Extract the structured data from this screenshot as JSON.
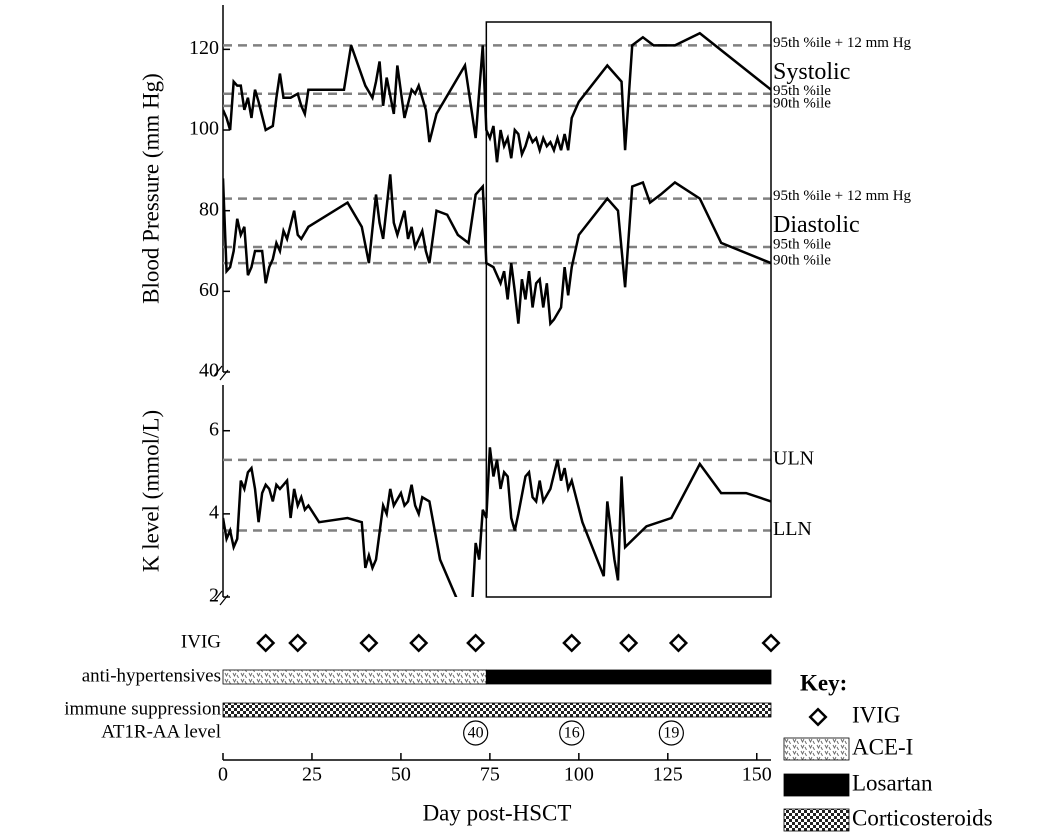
{
  "chart_data": {
    "type": "line",
    "xlabel": "Day post-HSCT",
    "xlim": [
      0,
      154
    ],
    "xticks": [
      0,
      25,
      50,
      75,
      100,
      125,
      150
    ],
    "highlight_range": [
      74,
      154
    ],
    "color": "#000000",
    "ref_color": "#808080",
    "panels": [
      {
        "ylabel": "Blood Pressure (mm Hg)",
        "ylim": [
          40,
          131
        ],
        "yticks": [
          40,
          60,
          80,
          100,
          120
        ],
        "series": [
          {
            "name": "Systolic",
            "x": [
              0,
              1,
              2,
              3,
              4,
              5,
              6,
              7,
              8,
              9,
              10,
              12,
              14,
              15,
              16,
              17,
              19,
              21,
              22,
              23,
              24,
              34,
              36,
              40,
              42,
              43,
              44,
              45,
              46,
              48,
              49,
              51,
              53,
              54,
              55,
              57,
              58,
              60,
              68,
              71,
              73,
              74,
              75,
              76,
              77,
              78,
              79,
              80,
              81,
              82,
              83,
              84,
              85,
              86,
              87,
              88,
              89,
              90,
              91,
              92,
              93,
              94,
              95,
              96,
              97,
              98,
              100,
              108,
              112,
              113,
              115,
              118,
              121,
              127,
              134,
              154
            ],
            "values": [
              105,
              103,
              100,
              112,
              111,
              111,
              105,
              108,
              103,
              110,
              107,
              100,
              101,
              108,
              114,
              108,
              108,
              109,
              106,
              104,
              110,
              110,
              121,
              111,
              108,
              112,
              117,
              106,
              113,
              104,
              116,
              103,
              110,
              109,
              111,
              105,
              97,
              104,
              116,
              98,
              121,
              100,
              98,
              101,
              92,
              100,
              96,
              98,
              93,
              100,
              99,
              94,
              96,
              99,
              97,
              98,
              95,
              98,
              96,
              97,
              95,
              98,
              95,
              99,
              95,
              103,
              107,
              116,
              112,
              95,
              121,
              123,
              121,
              121,
              124,
              110
            ],
            "refs": [
              {
                "value": 121,
                "label": "95th %ile + 12 mm Hg"
              },
              {
                "value": 109,
                "label": "95th %ile"
              },
              {
                "value": 106,
                "label": "90th %ile"
              }
            ]
          },
          {
            "name": "Diastolic",
            "x": [
              0,
              1,
              2,
              3,
              4,
              5,
              6,
              7,
              8,
              9,
              11,
              12,
              13,
              14,
              15,
              16,
              17,
              18,
              20,
              21,
              22,
              24,
              35,
              39,
              41,
              43,
              44,
              45,
              47,
              48,
              49,
              51,
              52,
              53,
              54,
              56,
              57,
              58,
              60,
              63,
              66,
              69,
              71,
              73,
              74,
              76,
              78,
              79,
              80,
              81,
              82,
              83,
              84,
              85,
              86,
              87,
              88,
              89,
              90,
              91,
              92,
              93,
              95,
              96,
              97,
              98,
              100,
              108,
              111,
              113,
              115,
              118,
              120,
              123,
              127,
              134,
              140,
              154
            ],
            "values": [
              88,
              65,
              66,
              70,
              78,
              74,
              76,
              64,
              66,
              70,
              70,
              62,
              66,
              68,
              72,
              70,
              75,
              73,
              80,
              74,
              73,
              76,
              82,
              76,
              67,
              84,
              77,
              73,
              89,
              77,
              74,
              80,
              73,
              76,
              71,
              75,
              70,
              67,
              80,
              79,
              74,
              72,
              84,
              86,
              67,
              66,
              62,
              65,
              58,
              67,
              60,
              52,
              63,
              58,
              65,
              56,
              62,
              63,
              56,
              62,
              52,
              53,
              56,
              66,
              59,
              66,
              74,
              83,
              80,
              61,
              86,
              87,
              82,
              84,
              87,
              83,
              72,
              67
            ],
            "refs": [
              {
                "value": 83,
                "label": "95th %ile + 12 mm Hg"
              },
              {
                "value": 71,
                "label": "95th %ile"
              },
              {
                "value": 67,
                "label": "90th %ile"
              }
            ]
          }
        ]
      },
      {
        "ylabel": "K level (mmol/L)",
        "ylim": [
          2,
          7.1
        ],
        "yticks": [
          2,
          4,
          6
        ],
        "series": [
          {
            "x": [
              0,
              1,
              2,
              3,
              4,
              5,
              6,
              7,
              8,
              9,
              10,
              11,
              12,
              13,
              14,
              15,
              16,
              17,
              18,
              19,
              20,
              21,
              22,
              23,
              24,
              27,
              35,
              39,
              40,
              41,
              42,
              43,
              45,
              46,
              47,
              48,
              50,
              51,
              52,
              53,
              54,
              55,
              56,
              58,
              61,
              66,
              70,
              71,
              72,
              73,
              74,
              75,
              76,
              77,
              78,
              79,
              80,
              81,
              82,
              83,
              85,
              86,
              87,
              88,
              89,
              90,
              92,
              94,
              95,
              96,
              97,
              98,
              101,
              107,
              108,
              110,
              111,
              112,
              113,
              119,
              126,
              134,
              140,
              147,
              154
            ],
            "values": [
              3.9,
              3.4,
              3.6,
              3.2,
              3.4,
              4.8,
              4.6,
              5.0,
              5.1,
              4.6,
              3.8,
              4.5,
              4.7,
              4.6,
              4.3,
              4.7,
              4.6,
              4.7,
              4.8,
              3.9,
              4.6,
              4.2,
              4.4,
              4.1,
              4.2,
              3.8,
              3.9,
              3.8,
              2.7,
              3.0,
              2.7,
              2.9,
              4.2,
              4.0,
              4.6,
              4.2,
              4.5,
              4.2,
              4.3,
              4.7,
              4.2,
              4.0,
              4.4,
              4.3,
              2.9,
              1.9,
              1.8,
              3.3,
              2.9,
              4.1,
              3.9,
              5.6,
              4.9,
              5.3,
              4.6,
              5.0,
              4.9,
              3.9,
              3.6,
              4.0,
              4.9,
              5.0,
              4.4,
              4.3,
              4.8,
              4.3,
              4.6,
              5.3,
              4.8,
              5.1,
              4.6,
              4.8,
              3.8,
              2.5,
              4.3,
              2.9,
              2.4,
              4.9,
              3.2,
              3.7,
              3.9,
              5.2,
              4.5,
              4.5,
              4.3
            ],
            "refs": [
              {
                "value": 5.3,
                "label": "ULN"
              },
              {
                "value": 3.6,
                "label": "LLN"
              }
            ]
          }
        ]
      }
    ],
    "tracks": {
      "ivig": {
        "label": "IVIG",
        "days": [
          12,
          21,
          41,
          55,
          71,
          98,
          114,
          128,
          154
        ]
      },
      "antihypertensives": {
        "label": "anti-hypertensives",
        "segments": [
          {
            "name": "ACE-I",
            "start": 0,
            "end": 74
          },
          {
            "name": "Losartan",
            "start": 74,
            "end": 154
          }
        ]
      },
      "immune": {
        "label": "immune suppression",
        "segments": [
          {
            "name": "Corticosteroids",
            "start": 0,
            "end": 154
          }
        ]
      },
      "at1r": {
        "label": "AT1R-AA level",
        "x": [
          71,
          98,
          126
        ],
        "values": [
          40,
          16,
          19
        ]
      }
    },
    "key_title": "Key:"
  }
}
